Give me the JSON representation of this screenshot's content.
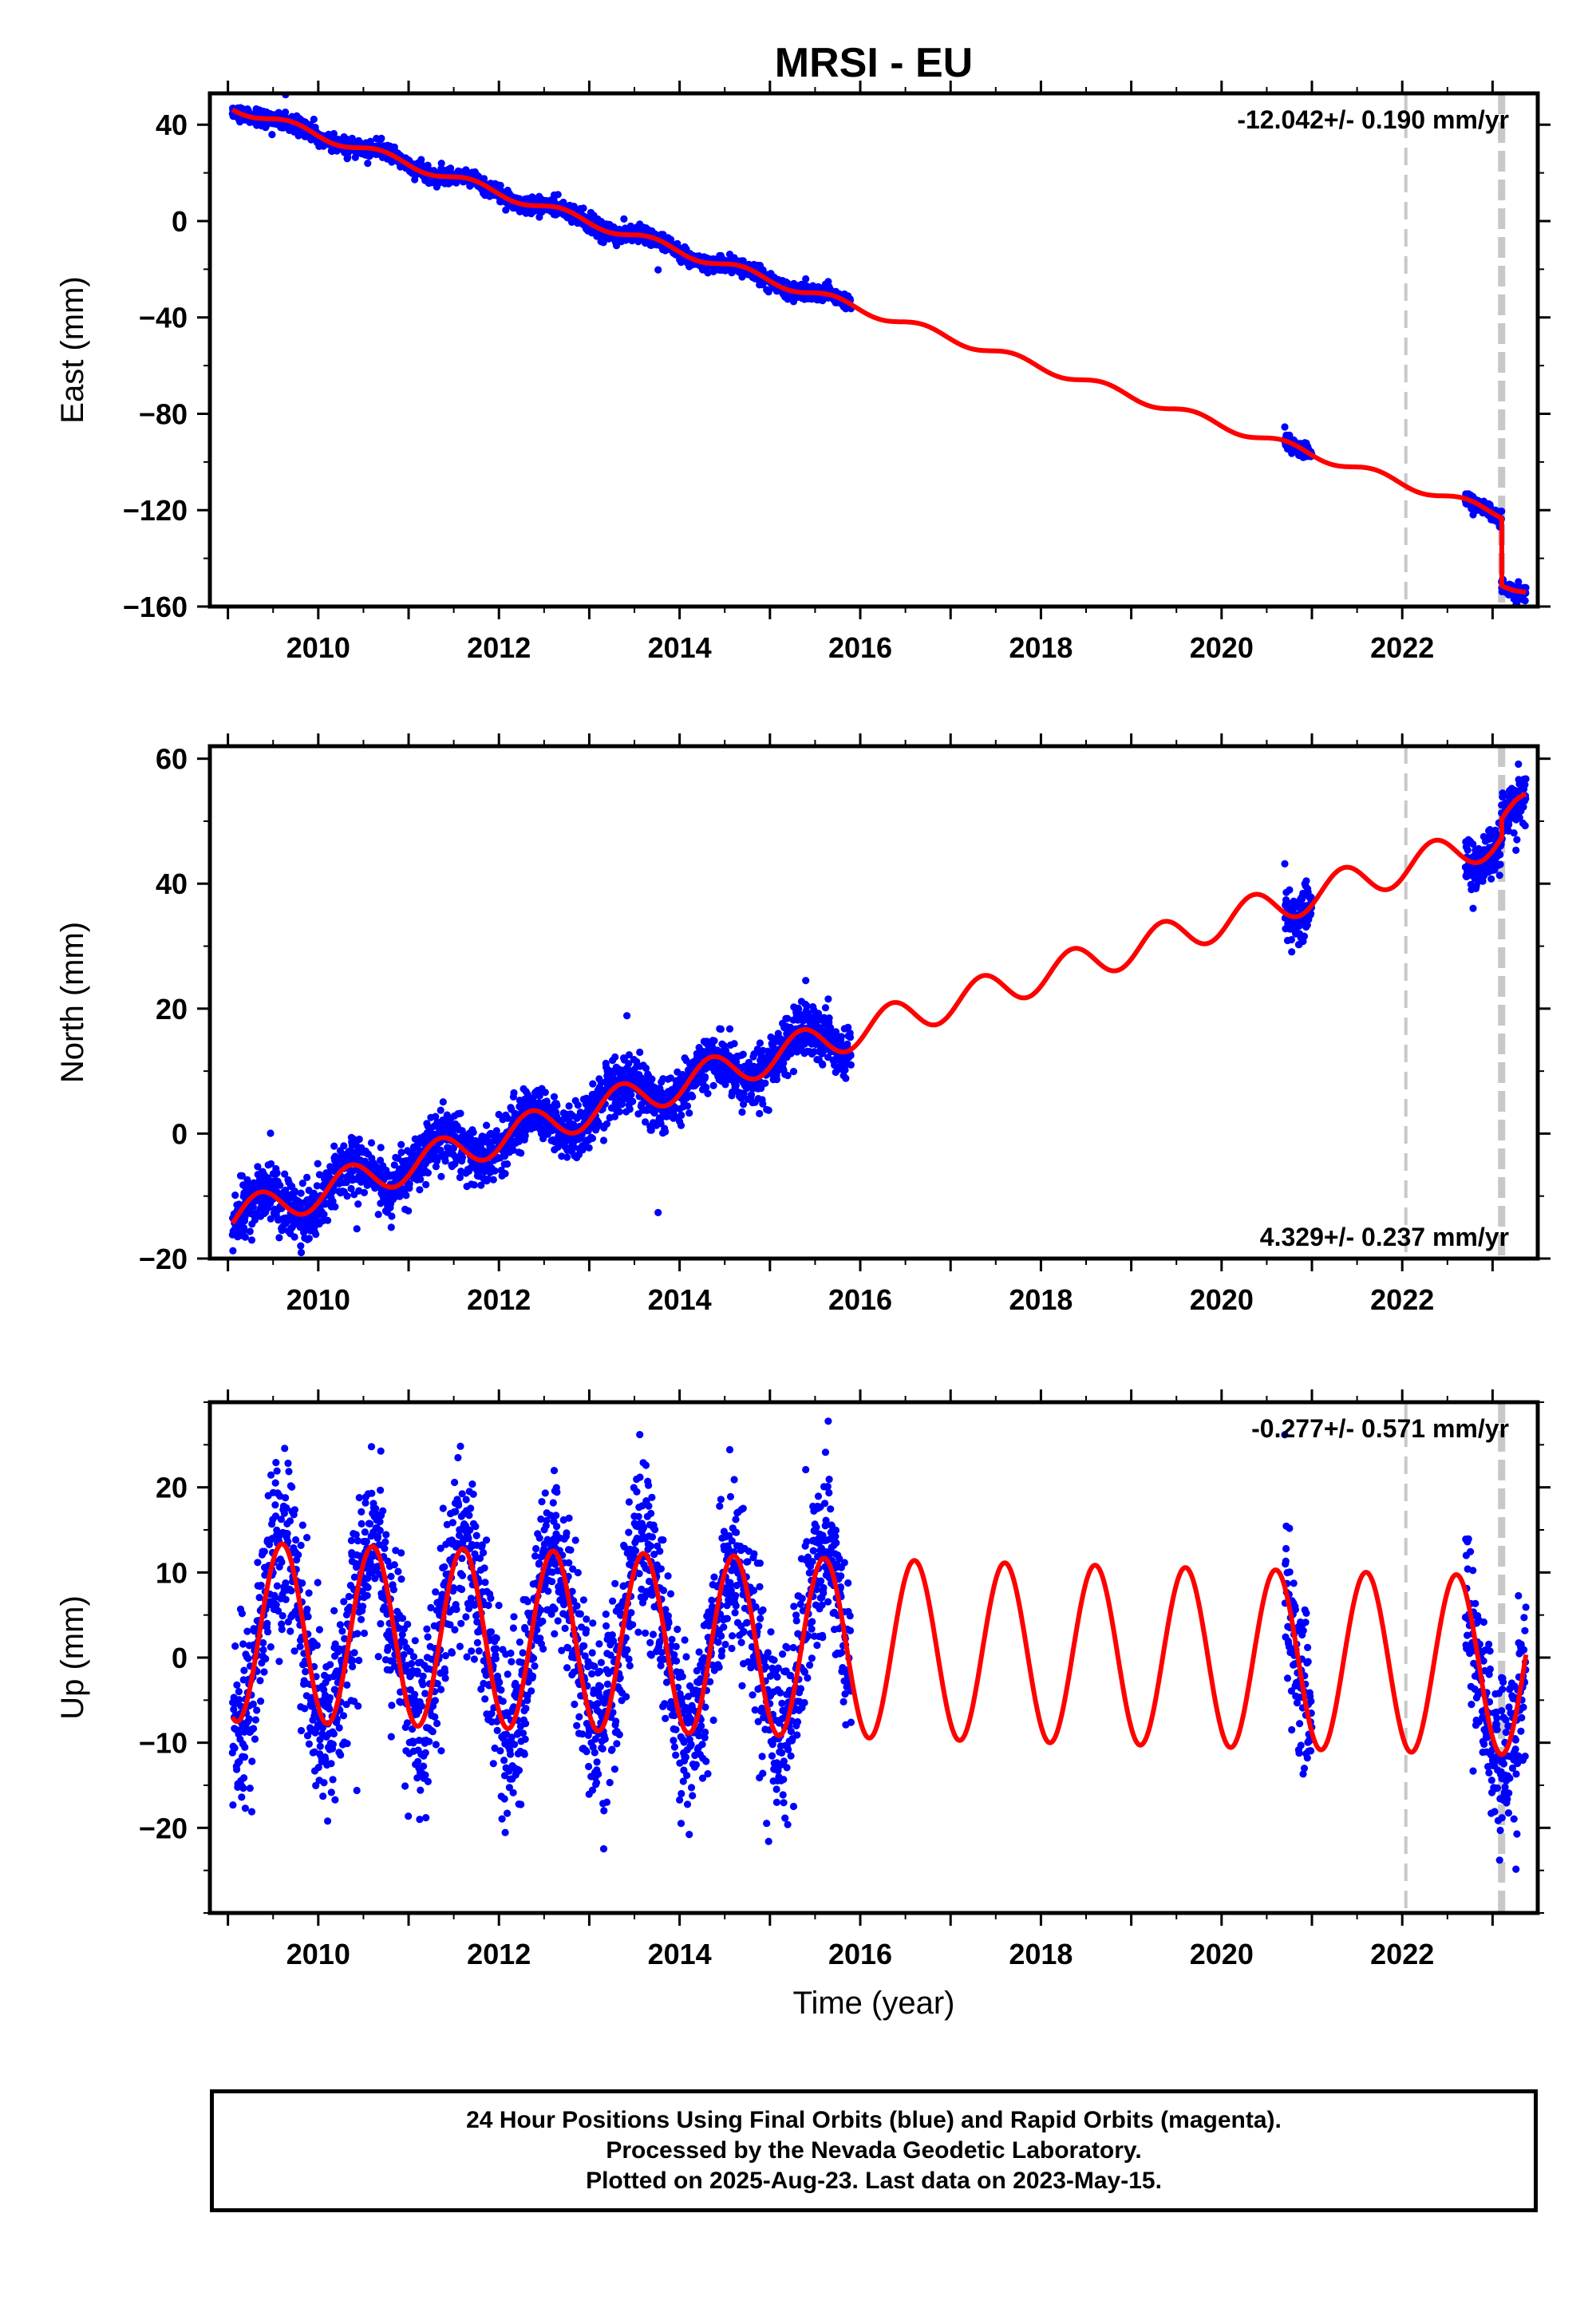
{
  "title": "MRSI - EU",
  "colors": {
    "data": "#0000ff",
    "model": "#ff0000",
    "steps": "#c8c8c8",
    "frame": "#000000"
  },
  "footer": {
    "line1": "24 Hour Positions Using Final Orbits (blue) and Rapid Orbits (magenta).",
    "line2": "Processed by the Nevada Geodetic Laboratory.",
    "line3": "Plotted on 2025-Aug-23. Last data on 2023-May-15."
  },
  "chart_data": [
    {
      "type": "scatter",
      "component": "east",
      "ylabel": "East (mm)",
      "xlabel": "",
      "rate_label": "-12.042+/- 0.190 mm/yr",
      "rate_position": "top-right",
      "xlim": [
        2008.8,
        2023.5
      ],
      "ylim": [
        -160,
        53
      ],
      "yticks": [
        40,
        0,
        -40,
        -80,
        -120,
        -160
      ],
      "xticks": [
        2010,
        2012,
        2014,
        2016,
        2018,
        2020,
        2022
      ],
      "tick_labels": [
        "40",
        "0",
        "−40",
        "−80",
        "−120",
        "−160"
      ],
      "x_tick_labels": [
        "2010",
        "2012",
        "2014",
        "2016",
        "2018",
        "2020",
        "2022"
      ],
      "steps": {
        "minor": [
          2022.04
        ],
        "major": [
          2023.1
        ]
      },
      "model": {
        "x0": 2009.05,
        "y0": 47.3,
        "rate": -12.042,
        "annual_amp": 1.8,
        "annual_phase": 0.45,
        "offsets": [
          {
            "t": 2023.1,
            "dy": -28
          }
        ]
      },
      "data_spans": [
        [
          2009.05,
          2015.9
        ],
        [
          2020.7,
          2021.0
        ],
        [
          2022.7,
          2023.1
        ],
        [
          2023.1,
          2023.37
        ]
      ],
      "noise": 1.6
    },
    {
      "type": "scatter",
      "component": "north",
      "ylabel": "North (mm)",
      "xlabel": "",
      "rate_label": "4.329+/- 0.237 mm/yr",
      "rate_position": "bottom-right",
      "xlim": [
        2008.8,
        2023.5
      ],
      "ylim": [
        -20,
        62
      ],
      "yticks": [
        60,
        40,
        20,
        0,
        -20
      ],
      "xticks": [
        2010,
        2012,
        2014,
        2016,
        2018,
        2020,
        2022
      ],
      "tick_labels": [
        "60",
        "40",
        "20",
        "0",
        "−20"
      ],
      "x_tick_labels": [
        "2010",
        "2012",
        "2014",
        "2016",
        "2018",
        "2020",
        "2022"
      ],
      "steps": {
        "minor": [
          2022.04
        ],
        "major": [
          2023.1
        ]
      },
      "model": {
        "x0": 2009.05,
        "y0": -13.5,
        "rate": 4.329,
        "annual_amp": 2.8,
        "annual_phase": 0.1,
        "offsets": [
          {
            "t": 2023.1,
            "dy": 3
          }
        ]
      },
      "data_spans": [
        [
          2009.05,
          2015.9
        ],
        [
          2020.7,
          2021.0
        ],
        [
          2022.7,
          2023.1
        ],
        [
          2023.1,
          2023.37
        ]
      ],
      "noise": 2.2
    },
    {
      "type": "scatter",
      "component": "up",
      "ylabel": "Up (mm)",
      "xlabel": "Time (year)",
      "rate_label": "-0.277+/- 0.571 mm/yr",
      "rate_position": "top-right",
      "xlim": [
        2008.8,
        2023.5
      ],
      "ylim": [
        -30,
        30
      ],
      "yticks": [
        20,
        10,
        0,
        -10,
        -20
      ],
      "xticks": [
        2010,
        2012,
        2014,
        2016,
        2018,
        2020,
        2022
      ],
      "tick_labels": [
        "20",
        "10",
        "0",
        "−10",
        "−20"
      ],
      "x_tick_labels": [
        "2010",
        "2012",
        "2014",
        "2016",
        "2018",
        "2020",
        "2022"
      ],
      "steps": {
        "minor": [
          2022.04
        ],
        "major": [
          2023.1
        ]
      },
      "model": {
        "x0": 2009.05,
        "y0": 3.0,
        "rate": -0.277,
        "annual_amp": 10.5,
        "annual_phase": 0.35,
        "offsets": []
      },
      "data_spans": [
        [
          2009.05,
          2015.9
        ],
        [
          2020.7,
          2021.0
        ],
        [
          2022.7,
          2023.1
        ],
        [
          2023.1,
          2023.37
        ]
      ],
      "noise": 5.0
    }
  ]
}
